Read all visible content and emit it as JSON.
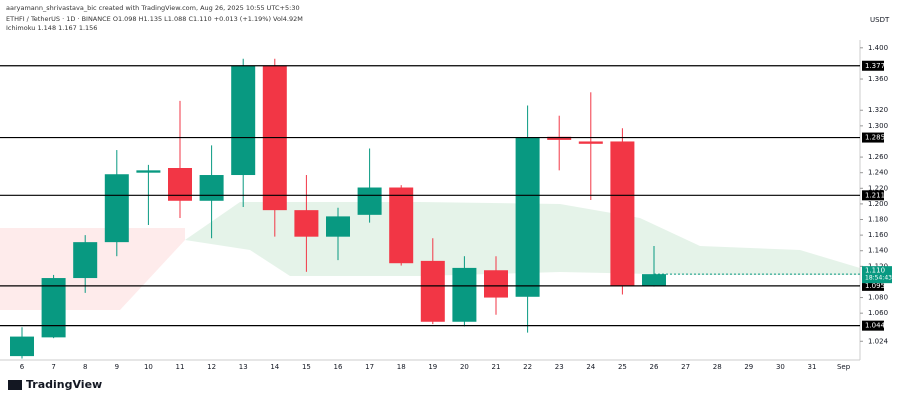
{
  "header": {
    "credit": "aaryamann_shrivastava_bic created with TradingView.com, Aug 26, 2025 10:55 UTC+5:30",
    "symbol": "ETHFI / TetherUS · 1D · BINANCE  O1.098 H1.135 L1.088 C1.110 +0.013 (+1.19%) Vol4.92M",
    "indicator": "Ichimoku  1.148  1.167  1.156",
    "currency": "USDT"
  },
  "footer": {
    "brand": "TradingView"
  },
  "chart_data": {
    "type": "candlestick",
    "categories": [
      "6",
      "7",
      "8",
      "9",
      "10",
      "11",
      "12",
      "13",
      "14",
      "15",
      "16",
      "17",
      "18",
      "19",
      "20",
      "21",
      "22",
      "23",
      "24",
      "25",
      "26",
      "27",
      "28",
      "29",
      "30",
      "31",
      "Sep"
    ],
    "open": [
      1.005,
      1.029,
      1.105,
      1.151,
      1.24,
      1.246,
      1.204,
      1.237,
      1.377,
      1.192,
      1.158,
      1.186,
      1.221,
      1.127,
      1.049,
      1.115,
      1.081,
      1.286,
      1.28,
      1.28,
      1.095,
      null,
      null,
      null,
      null,
      null,
      null
    ],
    "high": [
      1.042,
      1.109,
      1.16,
      1.269,
      1.25,
      1.332,
      1.275,
      1.386,
      1.386,
      1.237,
      1.195,
      1.271,
      1.224,
      1.156,
      1.133,
      1.133,
      1.326,
      1.313,
      1.343,
      1.297,
      1.146,
      null,
      null,
      null,
      null,
      null,
      null
    ],
    "low": [
      1.002,
      1.028,
      1.086,
      1.133,
      1.173,
      1.182,
      1.156,
      1.196,
      1.158,
      1.113,
      1.128,
      1.176,
      1.121,
      1.046,
      1.043,
      1.058,
      1.035,
      1.243,
      1.205,
      1.084,
      1.094,
      null,
      null,
      null,
      null,
      null,
      null
    ],
    "close": [
      1.03,
      1.105,
      1.151,
      1.238,
      1.243,
      1.204,
      1.237,
      1.377,
      1.192,
      1.158,
      1.184,
      1.221,
      1.124,
      1.049,
      1.118,
      1.08,
      1.285,
      1.282,
      1.277,
      1.095,
      1.11,
      null,
      null,
      null,
      null,
      null,
      null
    ],
    "up_color": "#089981",
    "down_color": "#f23645",
    "ylim": [
      1.0,
      1.41
    ],
    "yticks": [
      {
        "value": 1.4,
        "label": "1.400"
      },
      {
        "value": 1.36,
        "label": "1.360"
      },
      {
        "value": 1.32,
        "label": "1.320"
      },
      {
        "value": 1.3,
        "label": "1.300"
      },
      {
        "value": 1.26,
        "label": "1.260"
      },
      {
        "value": 1.24,
        "label": "1.240"
      },
      {
        "value": 1.22,
        "label": "1.220"
      },
      {
        "value": 1.2,
        "label": "1.200"
      },
      {
        "value": 1.18,
        "label": "1.180"
      },
      {
        "value": 1.16,
        "label": "1.160"
      },
      {
        "value": 1.14,
        "label": "1.140"
      },
      {
        "value": 1.12,
        "label": "1.120"
      },
      {
        "value": 1.08,
        "label": "1.080"
      },
      {
        "value": 1.06,
        "label": "1.060"
      },
      1.024
    ],
    "levels": [
      1.377,
      1.285,
      1.211,
      1.095,
      1.044
    ],
    "last_price": {
      "value": 1.11,
      "label": "1.110"
    },
    "countdown": "18:54:43"
  }
}
